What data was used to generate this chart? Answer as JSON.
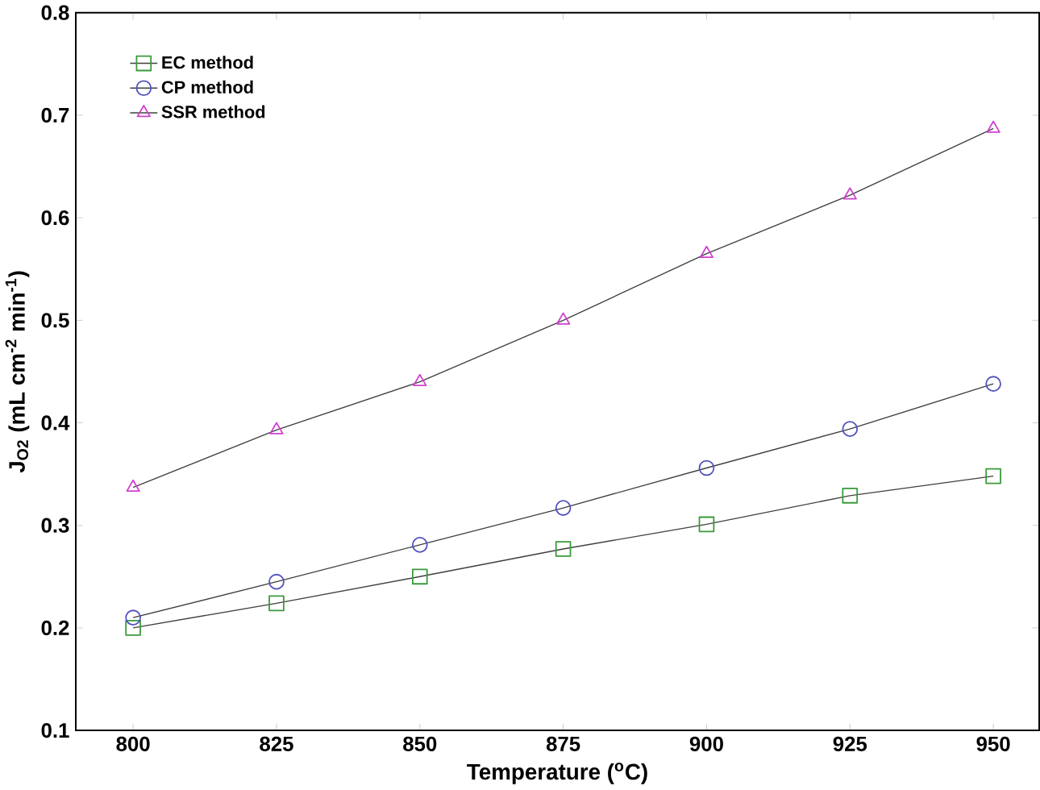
{
  "chart_data": {
    "type": "line",
    "xlabel": "Temperature ($^{o}$C)",
    "ylabel": "J$_{O2}$ (mL cm$^{-2}$ min$^{-1}$)",
    "x": [
      800,
      825,
      850,
      875,
      900,
      925,
      950
    ],
    "series": [
      {
        "name": "EC method",
        "color": "#3a9a3a",
        "marker": "square",
        "values": [
          0.2,
          0.224,
          0.25,
          0.277,
          0.301,
          0.329,
          0.348
        ]
      },
      {
        "name": "CP method",
        "color": "#5050c0",
        "marker": "circle",
        "values": [
          0.21,
          0.245,
          0.281,
          0.317,
          0.356,
          0.394,
          0.438
        ]
      },
      {
        "name": "SSR method",
        "color": "#d040d0",
        "marker": "triangle",
        "values": [
          0.337,
          0.393,
          0.44,
          0.5,
          0.565,
          0.622,
          0.687
        ]
      }
    ],
    "xlim": [
      790,
      958
    ],
    "ylim": [
      0.1,
      0.8
    ],
    "xticks": [
      800,
      825,
      850,
      875,
      900,
      925,
      950
    ],
    "yticks": [
      0.1,
      0.2,
      0.3,
      0.4,
      0.5,
      0.6,
      0.7,
      0.8
    ],
    "legend": "top left",
    "grid": false,
    "line_style": "solid"
  }
}
